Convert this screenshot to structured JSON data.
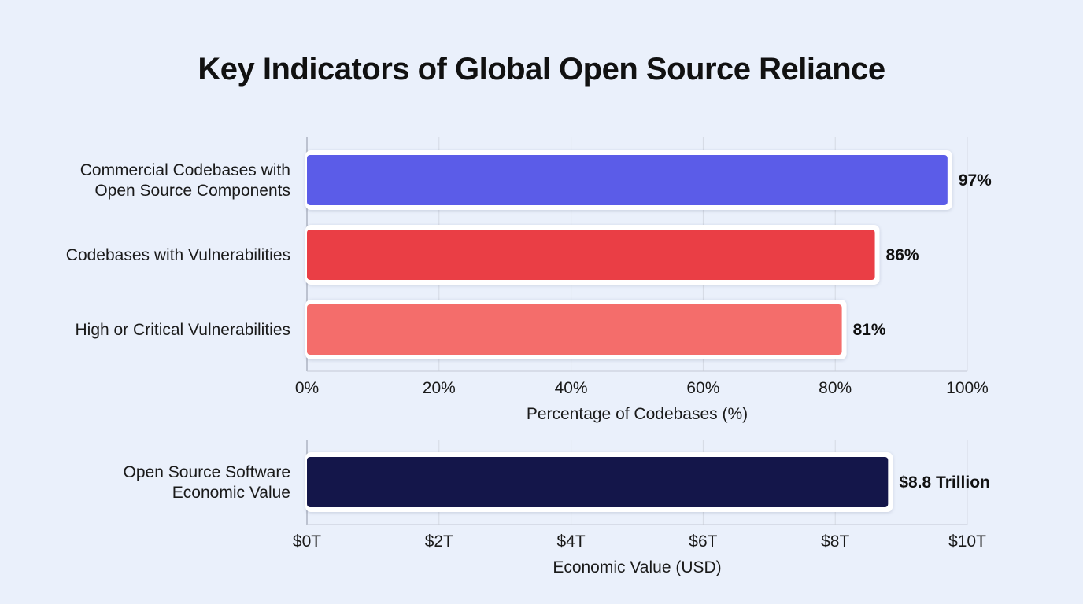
{
  "title": "Key Indicators of Global Open Source Reliance",
  "chart_data": [
    {
      "type": "bar",
      "orientation": "horizontal",
      "categories": [
        [
          "Commercial Codebases with",
          "Open Source Components"
        ],
        [
          "Codebases with Vulnerabilities"
        ],
        [
          "High or Critical Vulnerabilities"
        ]
      ],
      "values": [
        97,
        86,
        81
      ],
      "value_labels": [
        "97%",
        "86%",
        "81%"
      ],
      "colors": [
        "#5b5ce8",
        "#ea3e45",
        "#f46d6b"
      ],
      "xlabel": "Percentage of Codebases (%)",
      "xlim": [
        0,
        100
      ],
      "xticks": [
        0,
        20,
        40,
        60,
        80,
        100
      ],
      "xtick_labels": [
        "0%",
        "20%",
        "40%",
        "60%",
        "80%",
        "100%"
      ],
      "grid": true
    },
    {
      "type": "bar",
      "orientation": "horizontal",
      "categories": [
        [
          "Open Source Software",
          "Economic Value"
        ]
      ],
      "values": [
        8.8
      ],
      "value_labels": [
        "$8.8 Trillion"
      ],
      "colors": [
        "#14164a"
      ],
      "xlabel": "Economic Value (USD)",
      "xlim": [
        0,
        10
      ],
      "xticks": [
        0,
        2,
        4,
        6,
        8,
        10
      ],
      "xtick_labels": [
        "$0T",
        "$2T",
        "$4T",
        "$6T",
        "$8T",
        "$10T"
      ],
      "grid": true
    }
  ]
}
